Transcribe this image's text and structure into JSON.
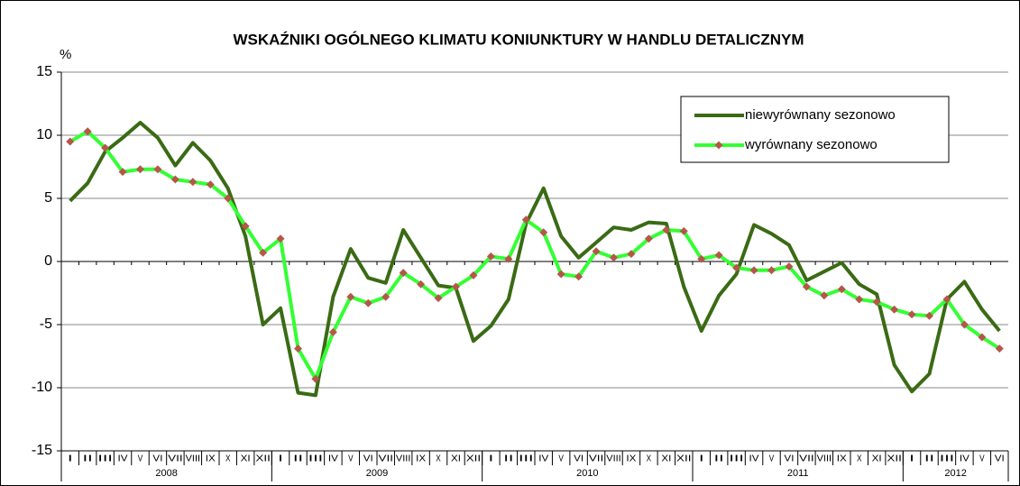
{
  "chart_data": {
    "type": "line",
    "title": "WSKAŹNIKI OGÓLNEGO KLIMATU KONIUNKTURY W HANDLU DETALICZNYM",
    "y_label": "%",
    "categories": [
      "I",
      "II",
      "III",
      "IV",
      "V",
      "VI",
      "VII",
      "VIII",
      "IX",
      "X",
      "XI",
      "XII",
      "I",
      "II",
      "III",
      "IV",
      "V",
      "VI",
      "VII",
      "VIII",
      "IX",
      "X",
      "XI",
      "XII",
      "I",
      "II",
      "III",
      "IV",
      "V",
      "VI",
      "VII",
      "VIII",
      "IX",
      "X",
      "XI",
      "XII",
      "I",
      "II",
      "III",
      "IV",
      "V",
      "VI",
      "VII",
      "VIII",
      "IX",
      "X",
      "XI",
      "XII",
      "I",
      "II",
      "III",
      "IV",
      "V",
      "VI"
    ],
    "years": [
      "2008",
      "2009",
      "2010",
      "2011",
      "2012"
    ],
    "series": [
      {
        "name": "niewyrównany sezonowo",
        "color": "#3a6b14",
        "marker": false,
        "values": [
          4.8,
          6.2,
          8.7,
          9.8,
          11.0,
          9.8,
          7.6,
          9.4,
          8.0,
          5.8,
          2.0,
          -5.0,
          -3.7,
          -10.4,
          -10.6,
          -2.8,
          1.0,
          -1.3,
          -1.7,
          2.5,
          0.3,
          -1.9,
          -2.1,
          -6.3,
          -5.1,
          -3.0,
          3.0,
          5.8,
          2.0,
          0.3,
          1.5,
          2.7,
          2.5,
          3.1,
          3.0,
          -2.0,
          -5.5,
          -2.7,
          -1.0,
          2.9,
          2.2,
          1.3,
          -1.5,
          -0.8,
          -0.1,
          -1.8,
          -2.6,
          -8.2,
          -10.3,
          -8.9,
          -3.0,
          -1.6,
          -3.8,
          -5.5
        ]
      },
      {
        "name": "wyrównany sezonowo",
        "color": "#33ff33",
        "marker": true,
        "marker_color": "#b5564a",
        "values": [
          9.5,
          10.3,
          9.0,
          7.1,
          7.3,
          7.3,
          6.5,
          6.3,
          6.1,
          5.0,
          2.8,
          0.7,
          1.8,
          -6.9,
          -9.3,
          -5.6,
          -2.8,
          -3.3,
          -2.8,
          -0.9,
          -1.8,
          -2.9,
          -2.0,
          -1.1,
          0.4,
          0.2,
          3.3,
          2.3,
          -1.0,
          -1.2,
          0.8,
          0.3,
          0.6,
          1.8,
          2.5,
          2.4,
          0.2,
          0.5,
          -0.5,
          -0.7,
          -0.7,
          -0.4,
          -2.0,
          -2.7,
          -2.2,
          -3.0,
          -3.2,
          -3.8,
          -4.2,
          -4.3,
          -3.0,
          -5.0,
          -6.0,
          -6.9
        ]
      }
    ],
    "ylim": [
      -15,
      15
    ],
    "yticks": [
      15,
      10,
      5,
      0,
      -5,
      -10,
      -15
    ],
    "grid": true,
    "legend": "upper right"
  }
}
